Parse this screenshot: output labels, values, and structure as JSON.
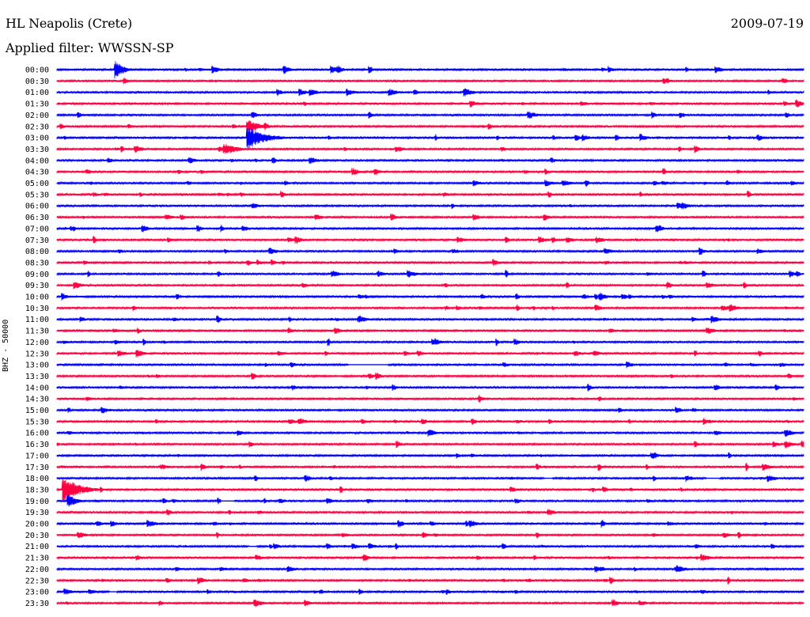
{
  "header": {
    "station": "HL Neapolis (Crete)",
    "date": "2009-07-19",
    "filter": "Applied filter: WWSSN-SP",
    "channel": "BHZ - 50000"
  },
  "colors": {
    "even_trace": "#0000ff",
    "odd_trace": "#ff0040",
    "background": "#ffffff"
  },
  "chart_data": {
    "type": "line",
    "title": "HL Neapolis (Crete)",
    "ylabel": "BHZ - 50000",
    "xlabel": "",
    "rows": [
      "00:00",
      "00:30",
      "01:00",
      "01:30",
      "02:00",
      "02:30",
      "03:00",
      "03:30",
      "04:00",
      "04:30",
      "05:00",
      "05:30",
      "06:00",
      "06:30",
      "07:00",
      "07:30",
      "08:00",
      "08:30",
      "09:00",
      "09:30",
      "10:00",
      "10:30",
      "11:00",
      "11:30",
      "12:00",
      "12:30",
      "13:00",
      "13:30",
      "14:00",
      "14:30",
      "15:00",
      "15:30",
      "16:00",
      "16:30",
      "17:00",
      "17:30",
      "18:00",
      "18:30",
      "19:00",
      "19:30",
      "20:00",
      "20:30",
      "21:00",
      "21:30",
      "22:00",
      "22:30",
      "23:00",
      "23:30"
    ],
    "row_duration_min": 30,
    "grid": false,
    "events": [
      {
        "row": 0,
        "minute": 2.4,
        "amplitude": 12,
        "duration_min": 0.8
      },
      {
        "row": 5,
        "minute": 7.7,
        "amplitude": 10,
        "duration_min": 1.2
      },
      {
        "row": 6,
        "minute": 7.7,
        "amplitude": 14,
        "duration_min": 2.0
      },
      {
        "row": 7,
        "minute": 6.8,
        "amplitude": 7,
        "duration_min": 1.5
      },
      {
        "row": 37,
        "minute": 0.3,
        "amplitude": 16,
        "duration_min": 1.8
      },
      {
        "row": 38,
        "minute": 0.5,
        "amplitude": 8,
        "duration_min": 1.0
      }
    ],
    "gaps": [
      {
        "row": 26,
        "minute_start": 11.7,
        "minute_end": 13.3
      },
      {
        "row": 38,
        "minute_start": 6.6,
        "minute_end": 7.1
      },
      {
        "row": 42,
        "minute_start": 7.7,
        "minute_end": 8.0
      },
      {
        "row": 46,
        "minute_start": 2.1,
        "minute_end": 2.4
      },
      {
        "row": 36,
        "minute_start": 19.6,
        "minute_end": 19.9
      },
      {
        "row": 36,
        "minute_start": 26.1,
        "minute_end": 26.6
      }
    ]
  }
}
